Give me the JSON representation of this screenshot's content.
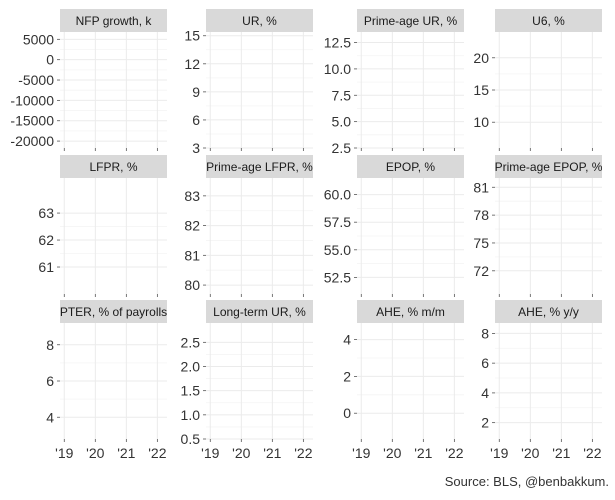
{
  "source": "Source: BLS, @benbakkum.",
  "colors": {
    "strip_bg": "#d9d9d9",
    "grid": "#ebebeb",
    "panel_bg": "#ffffff",
    "text": "#333333"
  },
  "chart_data": [
    {
      "type": "line",
      "title": "NFP growth, k",
      "x_ticks": [
        "'19",
        "'20",
        "'21",
        "'22"
      ],
      "y_ticks": [
        5000,
        0,
        -5000,
        -10000,
        -15000,
        -20000
      ],
      "y_tick_labels": [
        "5000",
        "0",
        "-5000",
        "-10000",
        "-15000",
        "-20000"
      ],
      "ylim": [
        -21700,
        6800
      ],
      "grid": true,
      "series": []
    },
    {
      "type": "line",
      "title": "UR, %",
      "x_ticks": [
        "'19",
        "'20",
        "'21",
        "'22"
      ],
      "y_ticks": [
        15,
        12,
        9,
        6,
        3
      ],
      "y_tick_labels": [
        "15",
        "12",
        "9",
        "6",
        "3"
      ],
      "ylim": [
        3,
        15.4
      ],
      "grid": true,
      "series": []
    },
    {
      "type": "line",
      "title": "Prime-age UR, %",
      "x_ticks": [
        "'19",
        "'20",
        "'21",
        "'22"
      ],
      "y_ticks": [
        12.5,
        10,
        7.5,
        5,
        2.5
      ],
      "y_tick_labels": [
        "12.5",
        "10.0",
        "7.5",
        "5.0",
        "2.5"
      ],
      "ylim": [
        2.5,
        13.5
      ],
      "grid": true,
      "series": []
    },
    {
      "type": "line",
      "title": "U6, %",
      "x_ticks": [
        "'19",
        "'20",
        "'21",
        "'22"
      ],
      "y_ticks": [
        20,
        15,
        10
      ],
      "y_tick_labels": [
        "20",
        "15",
        "10"
      ],
      "ylim": [
        6,
        24
      ],
      "grid": true,
      "series": []
    },
    {
      "type": "line",
      "title": "LFPR, %",
      "x_ticks": [
        "'19",
        "'20",
        "'21",
        "'22"
      ],
      "y_ticks": [
        63,
        62,
        61
      ],
      "y_tick_labels": [
        "63",
        "62",
        "61"
      ],
      "ylim": [
        60,
        64.3
      ],
      "grid": true,
      "series": []
    },
    {
      "type": "line",
      "title": "Prime-age LFPR, %",
      "x_ticks": [
        "'19",
        "'20",
        "'21",
        "'22"
      ],
      "y_ticks": [
        83,
        82,
        81,
        80
      ],
      "y_tick_labels": [
        "83",
        "82",
        "81",
        "80"
      ],
      "ylim": [
        79.7,
        83.6
      ],
      "grid": true,
      "series": []
    },
    {
      "type": "line",
      "title": "EPOP, %",
      "x_ticks": [
        "'19",
        "'20",
        "'21",
        "'22"
      ],
      "y_ticks": [
        60,
        57.5,
        55,
        52.5
      ],
      "y_tick_labels": [
        "60.0",
        "57.5",
        "55.0",
        "52.5"
      ],
      "ylim": [
        51,
        61.5
      ],
      "grid": true,
      "series": []
    },
    {
      "type": "line",
      "title": "Prime-age EPOP, %",
      "x_ticks": [
        "'19",
        "'20",
        "'21",
        "'22"
      ],
      "y_ticks": [
        81,
        78,
        75,
        72
      ],
      "y_tick_labels": [
        "81",
        "78",
        "75",
        "72"
      ],
      "ylim": [
        69.5,
        82
      ],
      "grid": true,
      "series": []
    },
    {
      "type": "line",
      "title": "PTER, % of payrolls",
      "x_ticks": [
        "'19",
        "'20",
        "'21",
        "'22"
      ],
      "y_ticks": [
        8,
        6,
        4
      ],
      "y_tick_labels": [
        "8",
        "6",
        "4"
      ],
      "ylim": [
        2.8,
        9.2
      ],
      "grid": true,
      "series": []
    },
    {
      "type": "line",
      "title": "Long-term UR, %",
      "x_ticks": [
        "'19",
        "'20",
        "'21",
        "'22"
      ],
      "y_ticks": [
        2.5,
        2,
        1.5,
        1,
        0.5
      ],
      "y_tick_labels": [
        "2.5",
        "2.0",
        "1.5",
        "1.0",
        "0.5"
      ],
      "ylim": [
        0.5,
        2.9
      ],
      "grid": true,
      "series": []
    },
    {
      "type": "line",
      "title": "AHE, % m/m",
      "x_ticks": [
        "'19",
        "'20",
        "'21",
        "'22"
      ],
      "y_ticks": [
        4,
        2,
        0
      ],
      "y_tick_labels": [
        "4",
        "2",
        "0"
      ],
      "ylim": [
        -1.4,
        4.9
      ],
      "grid": true,
      "series": []
    },
    {
      "type": "line",
      "title": "AHE, % y/y",
      "x_ticks": [
        "'19",
        "'20",
        "'21",
        "'22"
      ],
      "y_ticks": [
        8,
        6,
        4,
        2
      ],
      "y_tick_labels": [
        "8",
        "6",
        "4",
        "2"
      ],
      "ylim": [
        0.9,
        8.7
      ],
      "grid": true,
      "series": []
    }
  ]
}
